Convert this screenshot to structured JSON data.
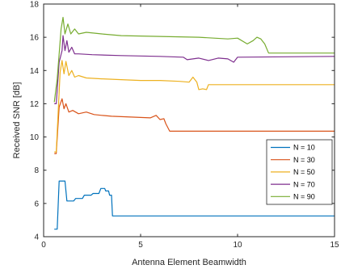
{
  "chart_data": {
    "type": "line",
    "title": "",
    "xlabel": "Antenna Element Beamwidth",
    "ylabel": "Received SNR [dB]",
    "xlim": [
      0,
      15
    ],
    "ylim": [
      4,
      18
    ],
    "x_ticks": [
      0,
      5,
      10,
      15
    ],
    "y_ticks": [
      4,
      6,
      8,
      10,
      12,
      14,
      16,
      18
    ],
    "grid": false,
    "legend_position": "right",
    "series": [
      {
        "name": "N = 10",
        "color": "#0072BD",
        "points": [
          [
            0.55,
            4.45
          ],
          [
            0.7,
            4.45
          ],
          [
            0.8,
            7.35
          ],
          [
            1.1,
            7.35
          ],
          [
            1.2,
            6.15
          ],
          [
            1.55,
            6.15
          ],
          [
            1.65,
            6.3
          ],
          [
            2.0,
            6.3
          ],
          [
            2.1,
            6.5
          ],
          [
            2.45,
            6.5
          ],
          [
            2.55,
            6.6
          ],
          [
            2.85,
            6.6
          ],
          [
            2.95,
            6.9
          ],
          [
            3.15,
            6.9
          ],
          [
            3.2,
            6.75
          ],
          [
            3.35,
            6.75
          ],
          [
            3.4,
            6.5
          ],
          [
            3.5,
            6.5
          ],
          [
            3.55,
            5.25
          ],
          [
            15,
            5.25
          ]
        ]
      },
      {
        "name": "N = 30",
        "color": "#D95319",
        "points": [
          [
            0.55,
            9.0
          ],
          [
            0.65,
            9.0
          ],
          [
            0.8,
            11.8
          ],
          [
            0.95,
            12.3
          ],
          [
            1.05,
            11.7
          ],
          [
            1.15,
            12.0
          ],
          [
            1.3,
            11.5
          ],
          [
            1.5,
            11.6
          ],
          [
            1.8,
            11.4
          ],
          [
            2.2,
            11.5
          ],
          [
            2.6,
            11.35
          ],
          [
            3.0,
            11.3
          ],
          [
            3.5,
            11.25
          ],
          [
            4.5,
            11.2
          ],
          [
            5.5,
            11.15
          ],
          [
            5.8,
            11.3
          ],
          [
            6.0,
            11.05
          ],
          [
            6.2,
            11.1
          ],
          [
            6.3,
            10.8
          ],
          [
            6.5,
            10.35
          ],
          [
            15,
            10.35
          ]
        ]
      },
      {
        "name": "N = 50",
        "color": "#EDB120",
        "points": [
          [
            0.55,
            9.1
          ],
          [
            0.65,
            9.1
          ],
          [
            0.85,
            13.9
          ],
          [
            0.95,
            14.6
          ],
          [
            1.05,
            13.8
          ],
          [
            1.15,
            14.55
          ],
          [
            1.3,
            13.7
          ],
          [
            1.45,
            14.0
          ],
          [
            1.6,
            13.6
          ],
          [
            1.8,
            13.7
          ],
          [
            2.2,
            13.55
          ],
          [
            3.0,
            13.5
          ],
          [
            4.0,
            13.45
          ],
          [
            5.0,
            13.4
          ],
          [
            6.0,
            13.4
          ],
          [
            7.0,
            13.35
          ],
          [
            7.5,
            13.3
          ],
          [
            7.7,
            13.6
          ],
          [
            7.9,
            13.3
          ],
          [
            8.0,
            12.85
          ],
          [
            8.2,
            12.9
          ],
          [
            8.4,
            12.85
          ],
          [
            8.5,
            13.15
          ],
          [
            15,
            13.15
          ]
        ]
      },
      {
        "name": "N = 70",
        "color": "#7E2F8E",
        "points": [
          [
            0.55,
            12.0
          ],
          [
            0.65,
            12.0
          ],
          [
            0.8,
            14.5
          ],
          [
            0.95,
            15.2
          ],
          [
            1.0,
            16.1
          ],
          [
            1.1,
            15.2
          ],
          [
            1.2,
            15.8
          ],
          [
            1.3,
            15.1
          ],
          [
            1.45,
            15.4
          ],
          [
            1.6,
            15.0
          ],
          [
            1.8,
            15.0
          ],
          [
            2.5,
            14.95
          ],
          [
            4.0,
            14.9
          ],
          [
            6.0,
            14.85
          ],
          [
            7.2,
            14.8
          ],
          [
            7.4,
            14.65
          ],
          [
            8.0,
            14.75
          ],
          [
            8.5,
            14.6
          ],
          [
            9.0,
            14.75
          ],
          [
            9.5,
            14.7
          ],
          [
            9.8,
            14.5
          ],
          [
            10.0,
            14.8
          ],
          [
            15,
            14.85
          ]
        ]
      },
      {
        "name": "N = 90",
        "color": "#77AC30",
        "points": [
          [
            0.55,
            12.1
          ],
          [
            0.7,
            13.5
          ],
          [
            0.9,
            16.5
          ],
          [
            1.0,
            17.2
          ],
          [
            1.1,
            16.2
          ],
          [
            1.25,
            16.8
          ],
          [
            1.4,
            16.2
          ],
          [
            1.6,
            16.5
          ],
          [
            1.8,
            16.2
          ],
          [
            2.2,
            16.3
          ],
          [
            3.0,
            16.2
          ],
          [
            4.0,
            16.1
          ],
          [
            6.0,
            16.05
          ],
          [
            8.0,
            16.0
          ],
          [
            9.5,
            15.9
          ],
          [
            10.0,
            15.95
          ],
          [
            10.5,
            15.6
          ],
          [
            10.8,
            15.8
          ],
          [
            11.0,
            16.0
          ],
          [
            11.2,
            15.9
          ],
          [
            11.4,
            15.6
          ],
          [
            11.6,
            15.05
          ],
          [
            15,
            15.05
          ]
        ]
      }
    ]
  }
}
